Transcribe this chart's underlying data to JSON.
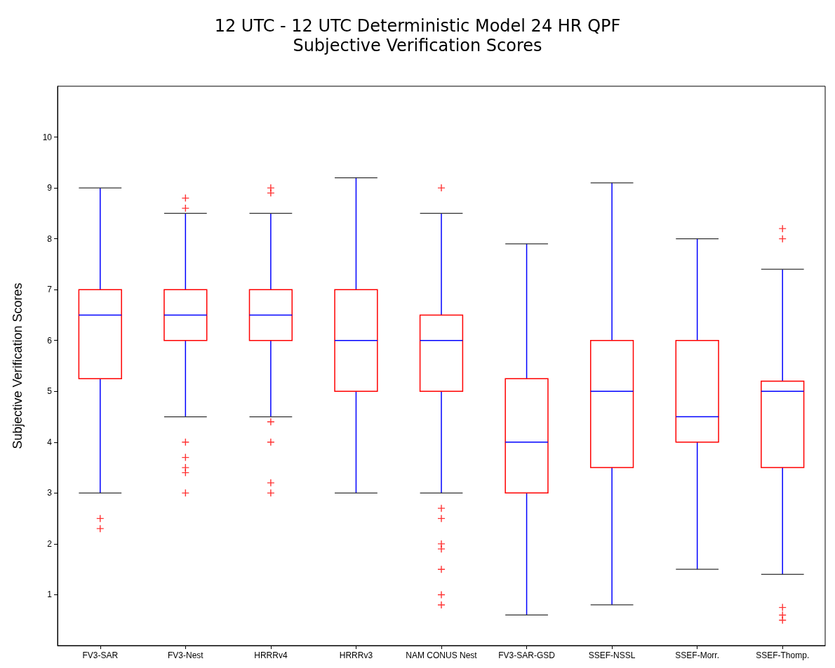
{
  "chart_data": {
    "type": "box",
    "title": "12 UTC - 12 UTC Deterministic Model 24 HR QPF",
    "subtitle": "Subjective Verification Scores",
    "ylabel": "Subjective Verification Scores",
    "categories": [
      "FV3-SAR",
      "FV3-Nest",
      "HRRRv4",
      "HRRRv3",
      "NAM CONUS Nest",
      "FV3-SAR-GSD",
      "SSEF-NSSL",
      "SSEF-Morr.",
      "SSEF-Thomp."
    ],
    "ylim": [
      0,
      11
    ],
    "yticks": [
      1,
      2,
      3,
      4,
      5,
      6,
      7,
      8,
      9,
      10
    ],
    "grid": false,
    "marker": "cross",
    "series": [
      {
        "color": "#ff0000",
        "boxes": [
          {
            "low": 3,
            "q1": 5.25,
            "median": 6.5,
            "q3": 7,
            "high": 9,
            "outliers": [
              2.5,
              2.3
            ]
          },
          {
            "low": 4.5,
            "q1": 6,
            "median": 6.5,
            "q3": 7,
            "high": 8.5,
            "outliers": [
              8.8,
              8.6,
              4.0,
              3.7,
              3.5,
              3.4,
              3.0
            ]
          },
          {
            "low": 4.5,
            "q1": 6,
            "median": 6.5,
            "q3": 7,
            "high": 8.5,
            "outliers": [
              9.0,
              8.9,
              4.4,
              4.0,
              3.2,
              3.0
            ]
          },
          {
            "low": 3,
            "q1": 5,
            "median": 6,
            "q3": 7,
            "high": 9.2
          },
          {
            "low": 3,
            "q1": 5,
            "median": 6,
            "q3": 6.5,
            "high": 8.5,
            "outliers": [
              9.0,
              2.7,
              2.5,
              2.0,
              1.9,
              1.5,
              1.0,
              0.8
            ]
          },
          {
            "low": 0.6,
            "q1": 3,
            "median": 4,
            "q3": 5.25,
            "high": 7.9
          },
          {
            "low": 0.8,
            "q1": 3.5,
            "median": 5,
            "q3": 6,
            "high": 9.1
          },
          {
            "low": 1.5,
            "q1": 4,
            "median": 4.5,
            "q3": 6,
            "high": 8
          },
          {
            "low": 1.4,
            "q1": 3.5,
            "median": 5,
            "q3": 5.2,
            "high": 7.4,
            "outliers": [
              8.2,
              8.0,
              0.75,
              0.6,
              0.5
            ]
          }
        ]
      }
    ]
  }
}
